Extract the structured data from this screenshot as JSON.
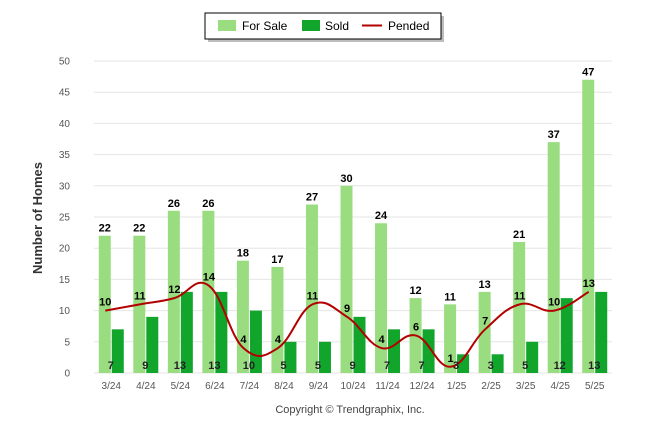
{
  "chart_data": {
    "type": "bar",
    "categories": [
      "3/24",
      "4/24",
      "5/24",
      "6/24",
      "7/24",
      "8/24",
      "9/24",
      "10/24",
      "11/24",
      "12/24",
      "1/25",
      "2/25",
      "3/25",
      "4/25",
      "5/25"
    ],
    "series": [
      {
        "name": "For Sale",
        "kind": "bar",
        "color": "#99dd80",
        "values": [
          22,
          22,
          26,
          26,
          18,
          17,
          27,
          30,
          24,
          12,
          11,
          13,
          21,
          37,
          47
        ]
      },
      {
        "name": "Sold",
        "kind": "bar",
        "color": "#11a52b",
        "values": [
          7,
          9,
          13,
          13,
          10,
          5,
          5,
          9,
          7,
          7,
          3,
          3,
          5,
          12,
          13
        ]
      },
      {
        "name": "Pended",
        "kind": "line",
        "color": "#b30000",
        "values": [
          10,
          11,
          12,
          14,
          4,
          4,
          11,
          9,
          4,
          6,
          1,
          7,
          11,
          10,
          13
        ]
      }
    ],
    "ylabel": "Number of Homes",
    "ylim": [
      0,
      50
    ],
    "yticks": [
      0,
      5,
      10,
      15,
      20,
      25,
      30,
      35,
      40,
      45,
      50
    ],
    "grid": true,
    "legend_position": "top-center",
    "copyright": "Copyright © Trendgraphix, Inc."
  }
}
